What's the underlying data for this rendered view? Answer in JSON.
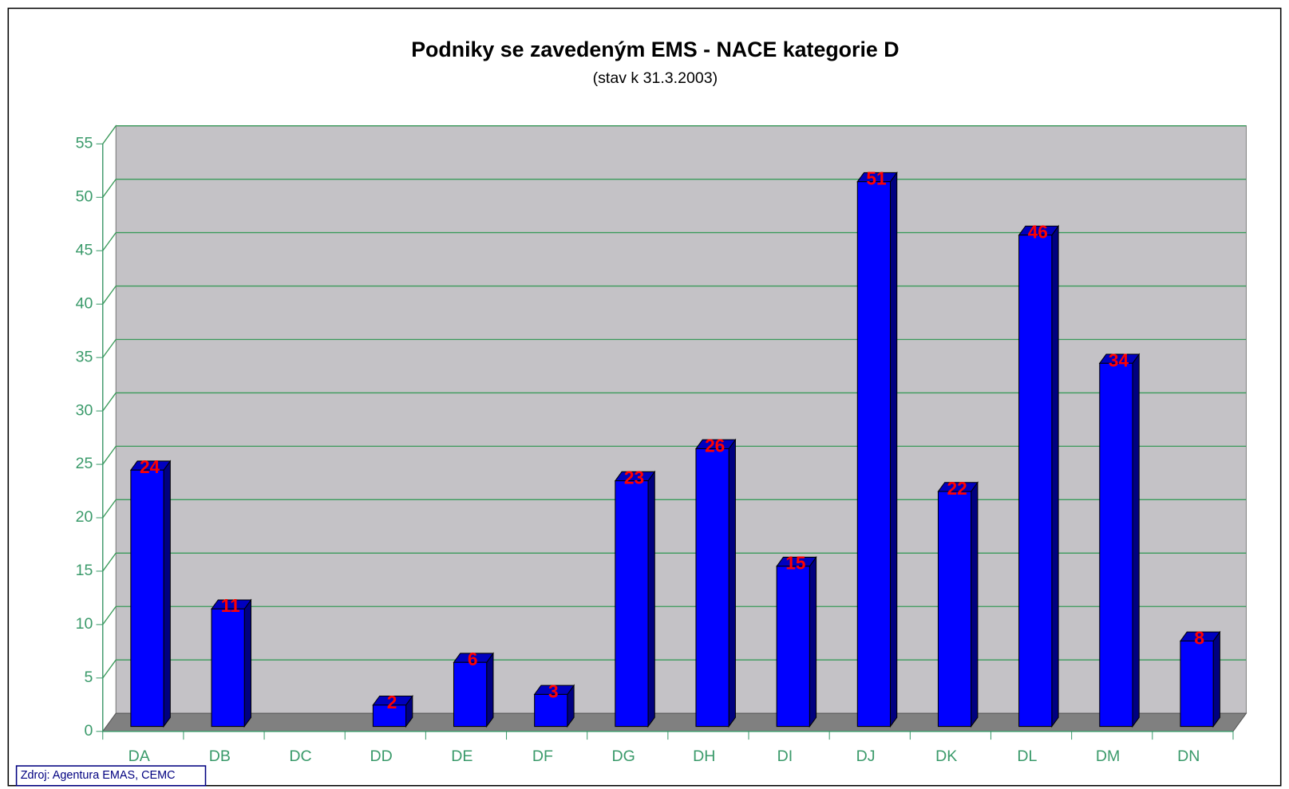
{
  "chart_data": {
    "type": "bar",
    "title": "Podniky se zavedeným EMS - NACE kategorie D",
    "subtitle": "(stav k 31.3.2003)",
    "categories": [
      "DA",
      "DB",
      "DC",
      "DD",
      "DE",
      "DF",
      "DG",
      "DH",
      "DI",
      "DJ",
      "DK",
      "DL",
      "DM",
      "DN"
    ],
    "values": [
      24,
      11,
      null,
      2,
      6,
      3,
      23,
      26,
      15,
      51,
      22,
      46,
      34,
      8
    ],
    "color": "#0000ff",
    "ylim": [
      0,
      55
    ],
    "yticks": [
      0,
      5,
      10,
      15,
      20,
      25,
      30,
      35,
      40,
      45,
      50,
      55
    ],
    "grid": true,
    "source": "Zdroj: Agentura EMAS, CEMC"
  }
}
